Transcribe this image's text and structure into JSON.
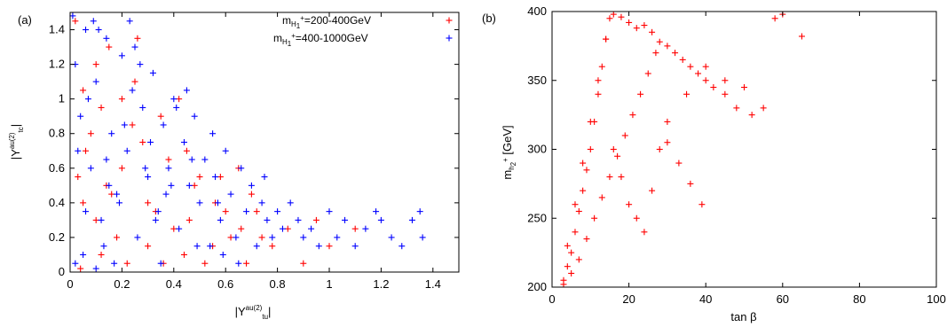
{
  "chart_data": [
    {
      "panel": "(a)",
      "type": "scatter",
      "marker": "plus",
      "xlabel": {
        "base": "|Y",
        "sup": "au(2)",
        "sub": "tu",
        "end": "|"
      },
      "ylabel": {
        "base": "|Y",
        "sup": "au(2)",
        "sub": "tc",
        "end": "|"
      },
      "xlim": [
        0,
        1.5
      ],
      "ylim": [
        0,
        1.5
      ],
      "xticks": [
        0,
        0.2,
        0.4,
        0.6,
        0.8,
        1,
        1.2,
        1.4
      ],
      "xtick_labels": [
        "0",
        "0.2",
        "0.4",
        "0.6",
        "0.8",
        "1",
        "1.2",
        "1.4"
      ],
      "yticks": [
        0,
        0.2,
        0.4,
        0.6,
        0.8,
        1,
        1.2,
        1.4
      ],
      "ytick_labels": [
        "0",
        "0.2",
        "0.4",
        "0.6",
        "0.8",
        "1",
        "1.2",
        "1.4"
      ],
      "legend_position": "top-right",
      "series": [
        {
          "name": {
            "m": "m",
            "sub": "H",
            "subsub": "1",
            "sup": "+",
            "range": "=200-400GeV"
          },
          "color": "#ff0000",
          "x": [
            0.02,
            0.05,
            0.1,
            0.12,
            0.15,
            0.2,
            0.22,
            0.25,
            0.3,
            0.35,
            0.4,
            0.45,
            0.5,
            0.55,
            0.6,
            0.65,
            0.7,
            0.78,
            0.9,
            0.95,
            1.0,
            1.1,
            0.03,
            0.08,
            0.18,
            0.28,
            0.33,
            0.42,
            0.48,
            0.52,
            0.58,
            0.62,
            0.68,
            0.72,
            0.05,
            0.12,
            0.24,
            0.38,
            0.44,
            0.04,
            0.1,
            0.16,
            0.26,
            0.36,
            0.46,
            0.56,
            0.66,
            0.74,
            0.84,
            0.06,
            0.14,
            0.2,
            0.3
          ],
          "y": [
            1.45,
            1.05,
            0.3,
            0.1,
            1.3,
            0.6,
            0.05,
            1.1,
            0.4,
            0.9,
            0.25,
            0.7,
            0.55,
            0.15,
            0.35,
            0.6,
            0.45,
            0.15,
            0.05,
            0.3,
            0.15,
            0.25,
            0.55,
            0.8,
            0.2,
            0.75,
            0.35,
            1.0,
            0.5,
            0.05,
            0.55,
            0.2,
            0.05,
            0.35,
            0.4,
            0.95,
            0.85,
            0.65,
            0.1,
            0.02,
            1.2,
            0.45,
            1.35,
            0.05,
            0.3,
            0.4,
            0.25,
            0.2,
            0.25,
            0.7,
            0.5,
            1.0,
            0.15
          ]
        },
        {
          "name": {
            "m": "m",
            "sub": "H",
            "subsub": "1",
            "sup": "+",
            "range": "=400-1000GeV"
          },
          "color": "#0000ff",
          "x": [
            0.01,
            0.02,
            0.04,
            0.06,
            0.08,
            0.1,
            0.12,
            0.14,
            0.16,
            0.18,
            0.2,
            0.22,
            0.24,
            0.26,
            0.28,
            0.3,
            0.32,
            0.34,
            0.36,
            0.38,
            0.4,
            0.42,
            0.44,
            0.46,
            0.48,
            0.5,
            0.52,
            0.54,
            0.56,
            0.58,
            0.6,
            0.62,
            0.64,
            0.66,
            0.68,
            0.7,
            0.72,
            0.74,
            0.76,
            0.78,
            0.8,
            0.82,
            0.85,
            0.88,
            0.9,
            0.93,
            0.96,
            1.0,
            1.03,
            1.06,
            1.1,
            1.14,
            1.18,
            1.2,
            1.24,
            1.28,
            1.32,
            1.35,
            1.36,
            0.05,
            0.15,
            0.25,
            0.35,
            0.45,
            0.55,
            0.65,
            0.75,
            0.03,
            0.09,
            0.19,
            0.29,
            0.39,
            0.49,
            0.59,
            0.07,
            0.17,
            0.27,
            0.37,
            0.47,
            0.57,
            0.11,
            0.21,
            0.31,
            0.41,
            0.13,
            0.23,
            0.33,
            0.02,
            0.06,
            0.1,
            0.14
          ],
          "y": [
            1.48,
            1.2,
            0.9,
            1.4,
            0.6,
            1.1,
            0.3,
            1.35,
            0.8,
            0.45,
            1.25,
            0.7,
            1.05,
            0.2,
            0.95,
            0.55,
            1.15,
            0.35,
            0.85,
            0.6,
            1.0,
            0.25,
            0.75,
            0.5,
            0.9,
            0.4,
            0.65,
            0.15,
            0.55,
            0.3,
            0.7,
            0.45,
            0.2,
            0.6,
            0.35,
            0.5,
            0.15,
            0.4,
            0.3,
            0.2,
            0.35,
            0.25,
            0.4,
            0.3,
            0.2,
            0.25,
            0.15,
            0.35,
            0.2,
            0.3,
            0.15,
            0.25,
            0.35,
            0.3,
            0.2,
            0.15,
            0.3,
            0.35,
            0.2,
            0.1,
            0.5,
            1.3,
            0.05,
            1.05,
            0.8,
            0.05,
            0.55,
            0.7,
            1.45,
            0.4,
            0.6,
            0.5,
            0.15,
            0.1,
            1.0,
            0.05,
            1.2,
            0.45,
            0.65,
            0.4,
            1.4,
            0.85,
            0.75,
            0.95,
            0.15,
            1.45,
            0.3,
            0.05,
            0.35,
            0.02,
            0.65
          ]
        }
      ]
    },
    {
      "panel": "(b)",
      "type": "scatter",
      "marker": "plus",
      "xlabel": {
        "text": "tan β"
      },
      "ylabel": {
        "m": "m",
        "sub": "h",
        "subsub": "2",
        "sup": "+",
        "unit": " [GeV]"
      },
      "xlim": [
        0,
        100
      ],
      "ylim": [
        200,
        400
      ],
      "xticks": [
        0,
        20,
        40,
        60,
        80,
        100
      ],
      "xtick_labels": [
        "0",
        "20",
        "40",
        "60",
        "80",
        "100"
      ],
      "yticks": [
        200,
        250,
        300,
        350,
        400
      ],
      "ytick_labels": [
        "200",
        "250",
        "300",
        "350",
        "400"
      ],
      "series": [
        {
          "color": "#ff0000",
          "x": [
            3,
            4,
            5,
            6,
            7,
            8,
            9,
            10,
            11,
            12,
            13,
            14,
            15,
            16,
            18,
            20,
            22,
            24,
            26,
            28,
            30,
            32,
            34,
            36,
            38,
            40,
            42,
            45,
            48,
            52,
            55,
            58,
            60,
            65,
            4,
            6,
            8,
            10,
            12,
            14,
            16,
            18,
            20,
            22,
            24,
            26,
            28,
            30,
            35,
            40,
            45,
            50,
            3,
            5,
            7,
            9,
            11,
            13,
            15,
            17,
            19,
            21,
            23,
            25,
            27,
            30,
            33,
            36,
            39
          ],
          "y": [
            205,
            215,
            225,
            240,
            255,
            270,
            285,
            300,
            320,
            340,
            360,
            380,
            395,
            398,
            396,
            392,
            388,
            390,
            385,
            378,
            375,
            370,
            365,
            360,
            355,
            350,
            345,
            340,
            330,
            325,
            330,
            395,
            398,
            382,
            230,
            260,
            290,
            320,
            350,
            380,
            300,
            280,
            260,
            250,
            240,
            270,
            300,
            320,
            340,
            360,
            350,
            345,
            202,
            210,
            220,
            235,
            250,
            265,
            280,
            295,
            310,
            325,
            340,
            355,
            370,
            305,
            290,
            275,
            260
          ]
        }
      ]
    }
  ]
}
